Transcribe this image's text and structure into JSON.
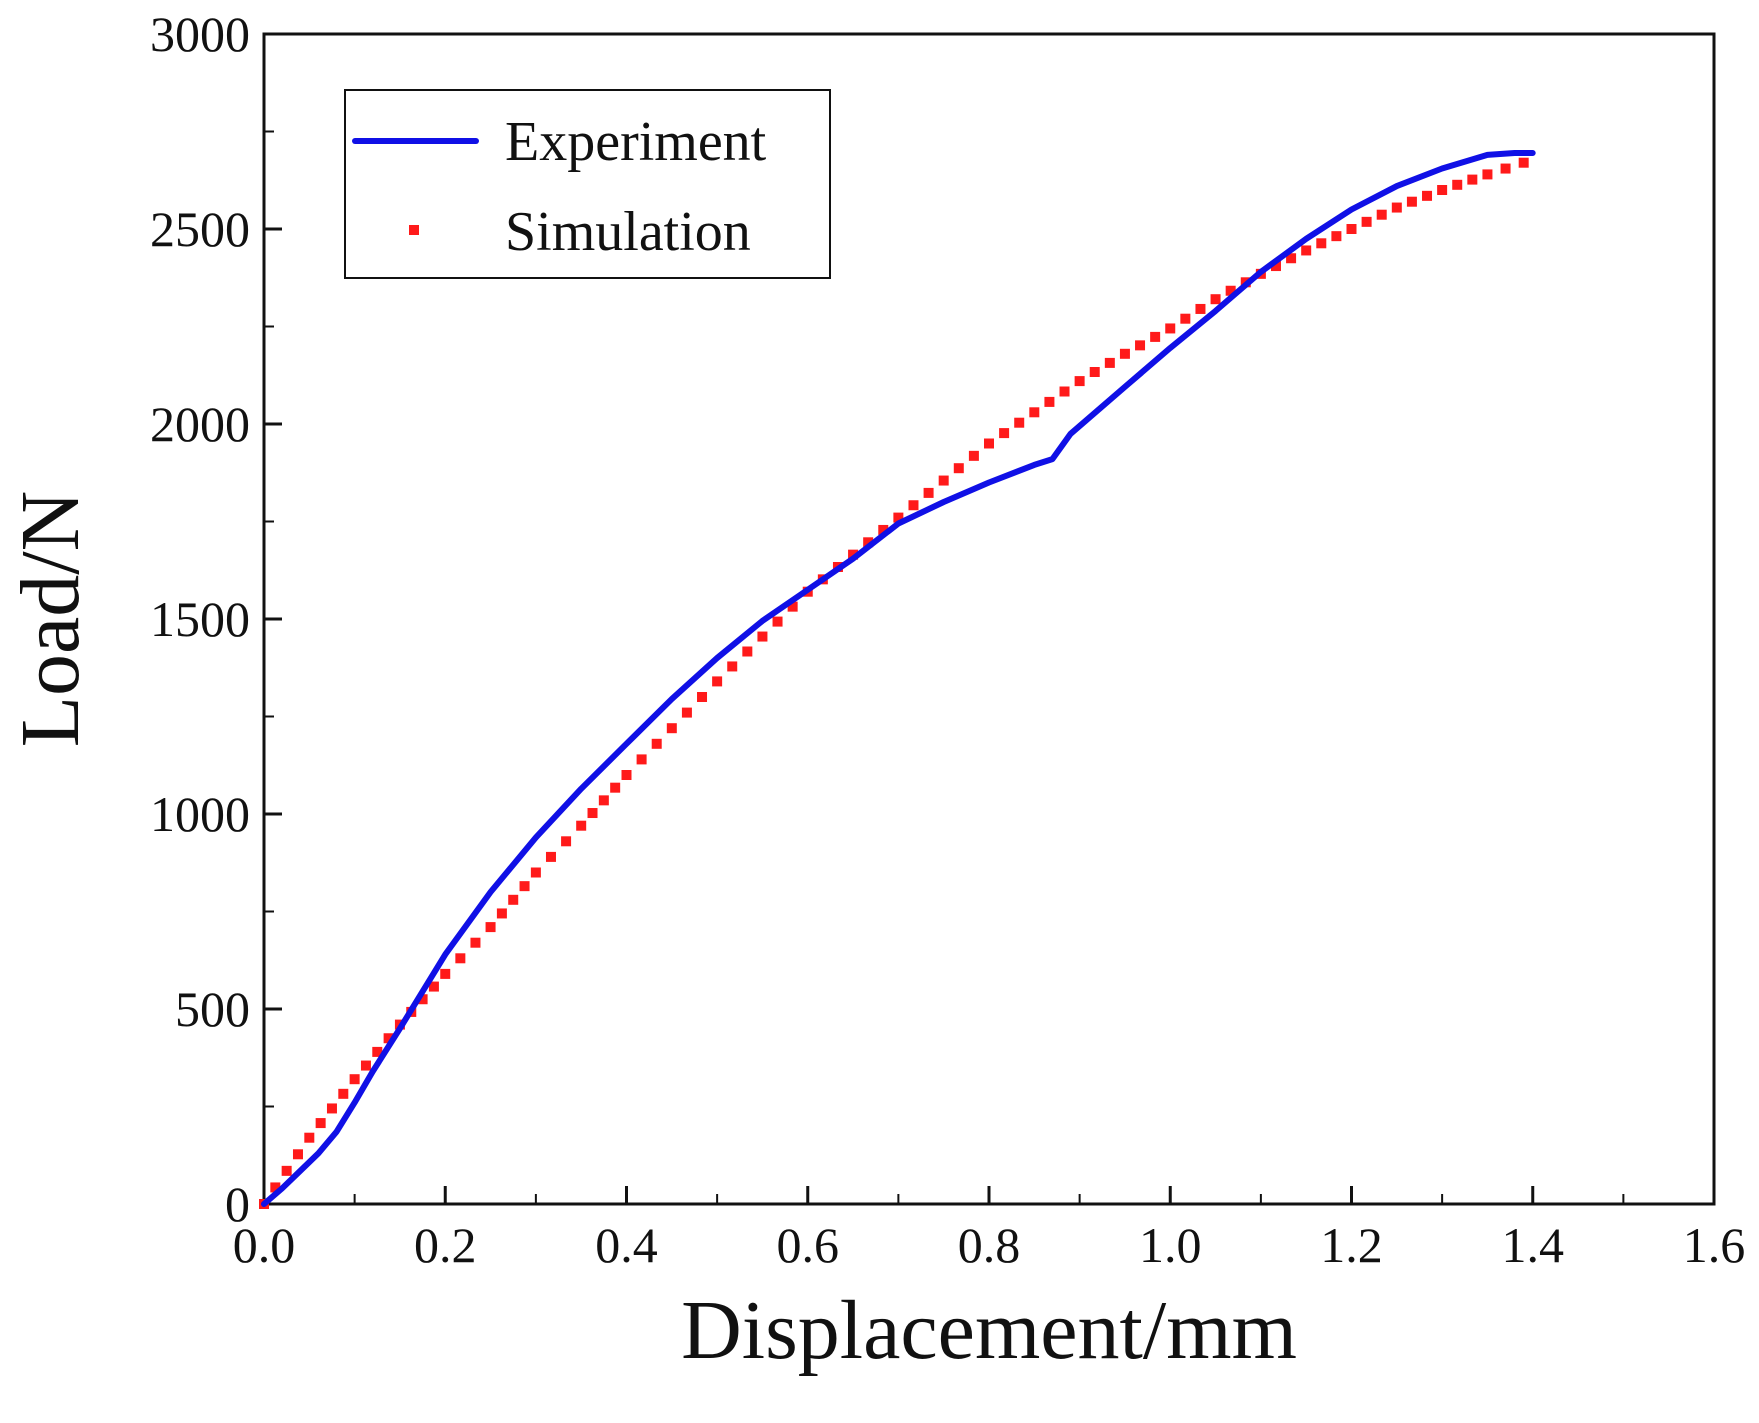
{
  "chart_data": {
    "type": "line",
    "title": "",
    "xlabel": "Displacement/mm",
    "ylabel": "Load/N",
    "xlim": [
      0.0,
      1.6
    ],
    "ylim": [
      0,
      3000
    ],
    "xticks": [
      "0.0",
      "0.2",
      "0.4",
      "0.6",
      "0.8",
      "1.0",
      "1.2",
      "1.4",
      "1.6"
    ],
    "yticks": [
      "0",
      "500",
      "1000",
      "1500",
      "2000",
      "2500",
      "3000"
    ],
    "legend_position": "top-left",
    "grid": false,
    "series": [
      {
        "name": "Experiment",
        "style": "line",
        "color": "#1010e6",
        "points": [
          [
            0.0,
            0
          ],
          [
            0.02,
            40
          ],
          [
            0.04,
            85
          ],
          [
            0.06,
            130
          ],
          [
            0.08,
            185
          ],
          [
            0.1,
            260
          ],
          [
            0.12,
            340
          ],
          [
            0.15,
            450
          ],
          [
            0.2,
            640
          ],
          [
            0.25,
            800
          ],
          [
            0.3,
            940
          ],
          [
            0.35,
            1065
          ],
          [
            0.4,
            1180
          ],
          [
            0.45,
            1295
          ],
          [
            0.5,
            1400
          ],
          [
            0.55,
            1495
          ],
          [
            0.6,
            1575
          ],
          [
            0.65,
            1655
          ],
          [
            0.7,
            1745
          ],
          [
            0.75,
            1800
          ],
          [
            0.8,
            1850
          ],
          [
            0.85,
            1895
          ],
          [
            0.87,
            1910
          ],
          [
            0.89,
            1975
          ],
          [
            0.95,
            2095
          ],
          [
            1.0,
            2195
          ],
          [
            1.05,
            2290
          ],
          [
            1.1,
            2390
          ],
          [
            1.15,
            2475
          ],
          [
            1.2,
            2550
          ],
          [
            1.25,
            2610
          ],
          [
            1.3,
            2655
          ],
          [
            1.35,
            2690
          ],
          [
            1.38,
            2695
          ],
          [
            1.4,
            2695
          ]
        ]
      },
      {
        "name": "Simulation",
        "style": "markers",
        "color": "#ff1a1a",
        "points": [
          [
            0.0,
            0
          ],
          [
            0.05,
            170
          ],
          [
            0.1,
            320
          ],
          [
            0.15,
            460
          ],
          [
            0.2,
            590
          ],
          [
            0.25,
            710
          ],
          [
            0.3,
            850
          ],
          [
            0.35,
            970
          ],
          [
            0.4,
            1100
          ],
          [
            0.45,
            1220
          ],
          [
            0.5,
            1340
          ],
          [
            0.55,
            1455
          ],
          [
            0.6,
            1570
          ],
          [
            0.65,
            1665
          ],
          [
            0.7,
            1760
          ],
          [
            0.75,
            1855
          ],
          [
            0.8,
            1950
          ],
          [
            0.85,
            2030
          ],
          [
            0.9,
            2110
          ],
          [
            0.95,
            2180
          ],
          [
            1.0,
            2245
          ],
          [
            1.05,
            2320
          ],
          [
            1.1,
            2385
          ],
          [
            1.15,
            2445
          ],
          [
            1.2,
            2500
          ],
          [
            1.25,
            2555
          ],
          [
            1.3,
            2600
          ],
          [
            1.35,
            2640
          ],
          [
            1.39,
            2670
          ]
        ]
      }
    ]
  }
}
